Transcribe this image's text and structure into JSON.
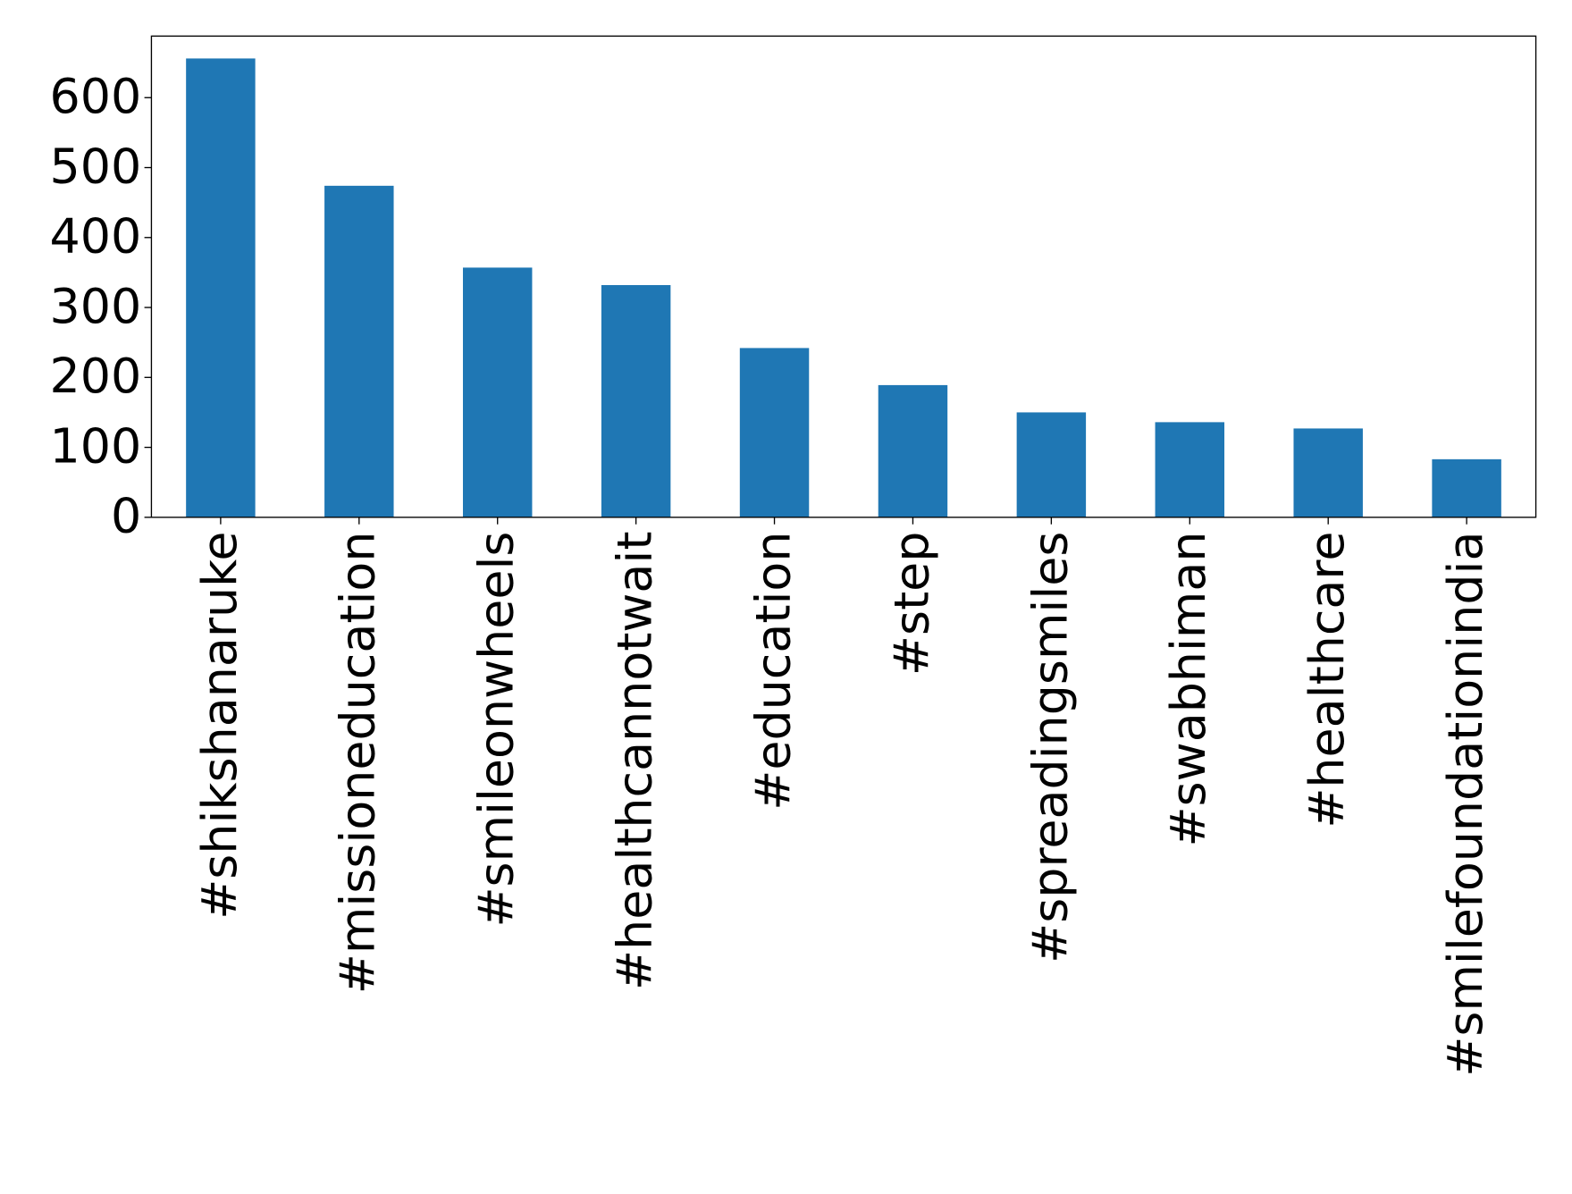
{
  "chart_data": {
    "type": "bar",
    "categories": [
      "#shikshanaruke",
      "#missioneducation",
      "#smileonwheels",
      "#healthcannotwait",
      "#education",
      "#step",
      "#spreadingsmiles",
      "#swabhiman",
      "#healthcare",
      "#smilefoundationindia"
    ],
    "values": [
      656,
      474,
      357,
      332,
      242,
      189,
      150,
      136,
      127,
      83
    ],
    "color": "#1f77b4",
    "ylim": [
      0,
      688
    ],
    "yticks": [
      0,
      100,
      200,
      300,
      400,
      500,
      600
    ],
    "grid": false
  }
}
